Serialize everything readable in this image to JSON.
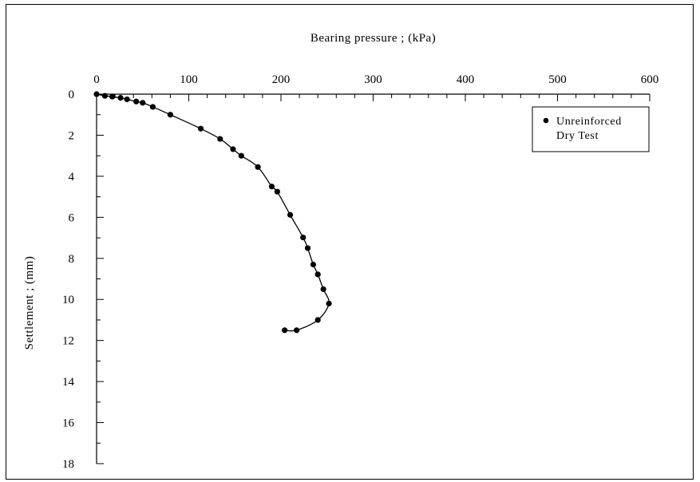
{
  "chart_data": {
    "type": "scatter",
    "title": "",
    "xlabel": "Bearing pressure ; (kPa)",
    "ylabel": "Settlement ; (mm)",
    "x_axis_position": "top",
    "y_axis_inverted": true,
    "xlim": [
      0,
      600
    ],
    "ylim": [
      0,
      18
    ],
    "x_ticks": [
      0,
      100,
      200,
      300,
      400,
      500,
      600
    ],
    "y_ticks": [
      0,
      2,
      4,
      6,
      8,
      10,
      12,
      14,
      16,
      18
    ],
    "grid": false,
    "legend_position": "top-right",
    "series": [
      {
        "name": "Unreinforced Dry Test",
        "marker": "filled-circle",
        "line": "smooth",
        "color": "#000000",
        "x": [
          0,
          9,
          17,
          26,
          33,
          43,
          50,
          61,
          80,
          113,
          134,
          148,
          157,
          175,
          190,
          196,
          210,
          224,
          229,
          235,
          240,
          246,
          252,
          240,
          217,
          204
        ],
        "y": [
          0,
          0.08,
          0.12,
          0.18,
          0.25,
          0.36,
          0.42,
          0.62,
          1.0,
          1.68,
          2.18,
          2.68,
          3.0,
          3.55,
          4.5,
          4.75,
          5.88,
          6.98,
          7.5,
          8.3,
          8.78,
          9.5,
          10.2,
          11.0,
          11.5,
          11.5
        ]
      }
    ]
  }
}
